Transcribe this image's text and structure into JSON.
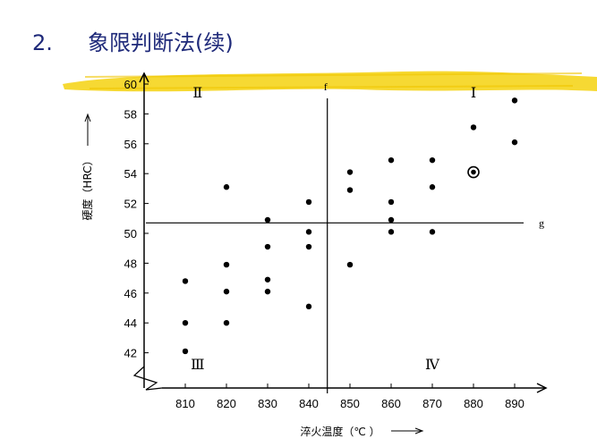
{
  "slide": {
    "number": "2.",
    "title": "象限判断法(续)"
  },
  "chart_data": {
    "type": "scatter",
    "xlabel": "淬火温度（℃ ）",
    "ylabel": "硬度（HRC）",
    "xlim": [
      800,
      900
    ],
    "ylim": [
      40,
      61
    ],
    "x_ticks": [
      810,
      820,
      830,
      840,
      850,
      860,
      870,
      880,
      890
    ],
    "y_ticks": [
      42,
      44,
      46,
      48,
      50,
      52,
      54,
      56,
      58,
      60
    ],
    "grid": false,
    "reference_lines": [
      {
        "name": "f",
        "orientation": "vertical",
        "x": 844.5
      },
      {
        "name": "g",
        "orientation": "horizontal",
        "y": 50.7
      }
    ],
    "quadrants": [
      {
        "label": "Ⅰ",
        "x": 880,
        "y": 59.1
      },
      {
        "label": "Ⅱ",
        "x": 813,
        "y": 59.1
      },
      {
        "label": "Ⅲ",
        "x": 813,
        "y": 40.9
      },
      {
        "label": "Ⅳ",
        "x": 870,
        "y": 40.9
      }
    ],
    "points": [
      {
        "x": 810,
        "y": 46.8
      },
      {
        "x": 810,
        "y": 44.0
      },
      {
        "x": 810,
        "y": 42.1
      },
      {
        "x": 820,
        "y": 53.1
      },
      {
        "x": 820,
        "y": 47.9
      },
      {
        "x": 820,
        "y": 46.1
      },
      {
        "x": 820,
        "y": 44.0
      },
      {
        "x": 830,
        "y": 50.9
      },
      {
        "x": 830,
        "y": 49.1
      },
      {
        "x": 830,
        "y": 46.9
      },
      {
        "x": 830,
        "y": 46.1
      },
      {
        "x": 840,
        "y": 52.1
      },
      {
        "x": 840,
        "y": 50.1
      },
      {
        "x": 840,
        "y": 49.1
      },
      {
        "x": 840,
        "y": 45.1
      },
      {
        "x": 850,
        "y": 54.1
      },
      {
        "x": 850,
        "y": 52.9
      },
      {
        "x": 850,
        "y": 47.9
      },
      {
        "x": 860,
        "y": 54.9
      },
      {
        "x": 860,
        "y": 52.1
      },
      {
        "x": 860,
        "y": 50.9
      },
      {
        "x": 860,
        "y": 50.1
      },
      {
        "x": 870,
        "y": 54.9
      },
      {
        "x": 870,
        "y": 53.1
      },
      {
        "x": 870,
        "y": 50.1
      },
      {
        "x": 880,
        "y": 57.1
      },
      {
        "x": 890,
        "y": 58.9
      },
      {
        "x": 890,
        "y": 56.1
      }
    ],
    "highlighted_points": [
      {
        "x": 880,
        "y": 54.1
      }
    ],
    "colors": {
      "highlight_band": "#f5d20f",
      "marks": "#000000",
      "title": "#1f2a7a"
    }
  }
}
